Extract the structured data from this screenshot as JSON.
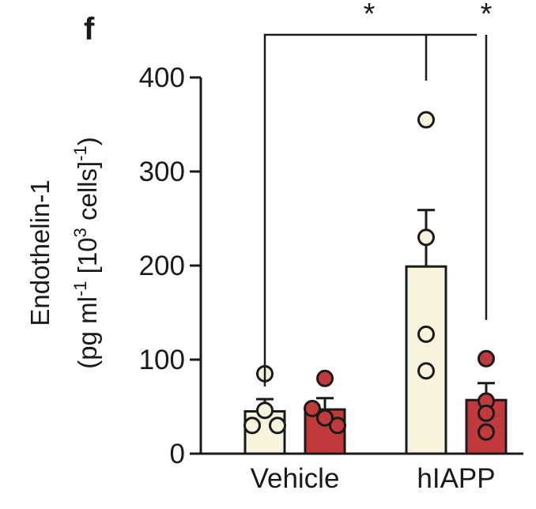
{
  "panel_label": "f",
  "colors": {
    "control": "#f8f3dc",
    "treated": "#c0393b",
    "ink": "#1a1a1a"
  },
  "chart_data": {
    "type": "bar",
    "categories": [
      "Vehicle",
      "hIAPP"
    ],
    "ylabel_line1": "Endothelin-1",
    "ylabel_line2_parts": [
      "(pg ml",
      "-1",
      " [10",
      "3",
      " cells]",
      "-1",
      ")"
    ],
    "ylim": [
      0,
      400
    ],
    "yticks": [
      0,
      100,
      200,
      300,
      400
    ],
    "grid": false,
    "legend": "none",
    "series": [
      {
        "color": "#f8f3dc",
        "values": [
          45,
          199
        ],
        "errors": [
          13,
          60
        ],
        "points": [
          [
            85,
            30,
            30,
            46
          ],
          [
            355,
            230,
            127,
            88
          ]
        ]
      },
      {
        "color": "#c0393b",
        "values": [
          47,
          57
        ],
        "errors": [
          12,
          18
        ],
        "points": [
          [
            80,
            48,
            30,
            38
          ],
          [
            101,
            56,
            43,
            23
          ]
        ]
      }
    ],
    "annotations": [
      {
        "label": "*",
        "from": [
          0,
          0
        ],
        "to": [
          1,
          0
        ]
      },
      {
        "label": "*",
        "from": [
          1,
          0
        ],
        "to": [
          1,
          1
        ]
      }
    ]
  }
}
